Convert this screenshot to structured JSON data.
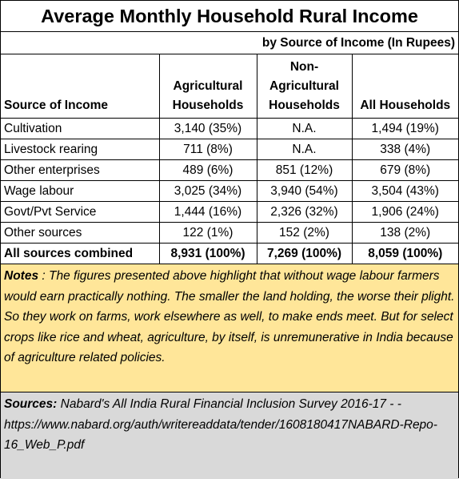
{
  "title": "Average Monthly Household Rural  Income",
  "subtitle": "by Source of Income (In Rupees)",
  "table": {
    "header": [
      [
        "Source of Income"
      ],
      [
        "Agricultural",
        "Households"
      ],
      [
        "Non-",
        "Agricultural",
        "Households"
      ],
      [
        "All Households"
      ]
    ],
    "rows": [
      [
        "Cultivation",
        "3,140 (35%)",
        "N.A.",
        "1,494 (19%)"
      ],
      [
        "Livestock rearing",
        "711 (8%)",
        "N.A.",
        "338 (4%)"
      ],
      [
        "Other enterprises",
        "489 (6%)",
        "851 (12%)",
        "679 (8%)"
      ],
      [
        "Wage  labour",
        "3,025 (34%)",
        "3,940 (54%)",
        "3,504 (43%)"
      ],
      [
        "Govt/Pvt Service",
        "1,444 (16%)",
        "2,326 (32%)",
        "1,906 (24%)"
      ],
      [
        "Other sources",
        "122 (1%)",
        "152 (2%)",
        "138 (2%)"
      ]
    ],
    "total": [
      "All sources combined",
      "8,931 (100%)",
      "7,269 (100%)",
      "8,059 (100%)"
    ]
  },
  "notes": {
    "label": "Notes",
    "text": " : The figures presented above highlight that without wage labour farmers would earn practically nothing. The smaller the land holding, the worse their plight. So they work on farms, work elsewhere as well, to make ends meet. But for select crops like rice and wheat, agriculture, by itself, is unremunerative in India because of agriculture related policies."
  },
  "sources": {
    "label": "Sources:",
    "text": "  Nabard's All India Rural Financial Inclusion Survey 2016-17 - - https://www.nabard.org/auth/writereaddata/tender/1608180417NABARD-Repo-16_Web_P.pdf"
  }
}
